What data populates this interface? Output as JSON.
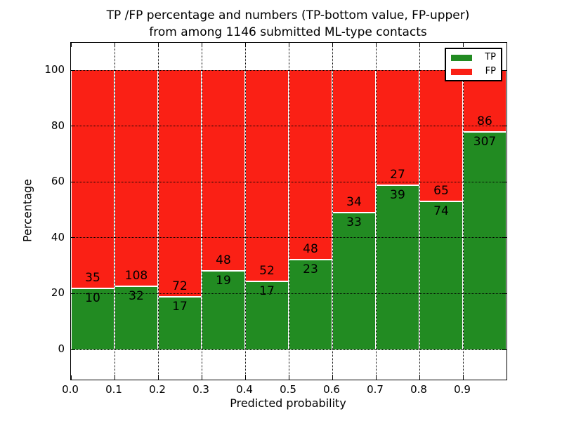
{
  "chart_data": {
    "type": "bar",
    "stacked": true,
    "normalized_to_percent": true,
    "title_line1": "TP /FP percentage and numbers (TP-bottom value, FP-upper)",
    "title_line2": "from among 1146 submitted ML-type contacts",
    "total_contacts": 1146,
    "xlabel": "Predicted probability",
    "ylabel": "Percentage",
    "bin_width": 0.1,
    "categories": [
      "0.0",
      "0.1",
      "0.2",
      "0.3",
      "0.4",
      "0.5",
      "0.6",
      "0.7",
      "0.8",
      "0.9"
    ],
    "series": [
      {
        "name": "TP",
        "color": "#228b22",
        "position": "bottom",
        "counts": [
          10,
          32,
          17,
          19,
          17,
          23,
          33,
          39,
          74,
          307
        ]
      },
      {
        "name": "FP",
        "color": "#fa2015",
        "position": "top",
        "counts": [
          35,
          108,
          72,
          48,
          52,
          48,
          34,
          27,
          65,
          86
        ]
      }
    ],
    "tp_percent_per_bin": [
      22.2,
      22.9,
      19.1,
      28.4,
      24.6,
      32.4,
      49.3,
      59.1,
      53.2,
      78.1
    ],
    "yticks": [
      0,
      20,
      40,
      60,
      80,
      100
    ],
    "ylim": [
      -11,
      110
    ],
    "xlim": [
      0.0,
      1.0
    ],
    "grid": "dotted",
    "legend_position": "upper right",
    "bar_edge_color": "#ffffff"
  }
}
